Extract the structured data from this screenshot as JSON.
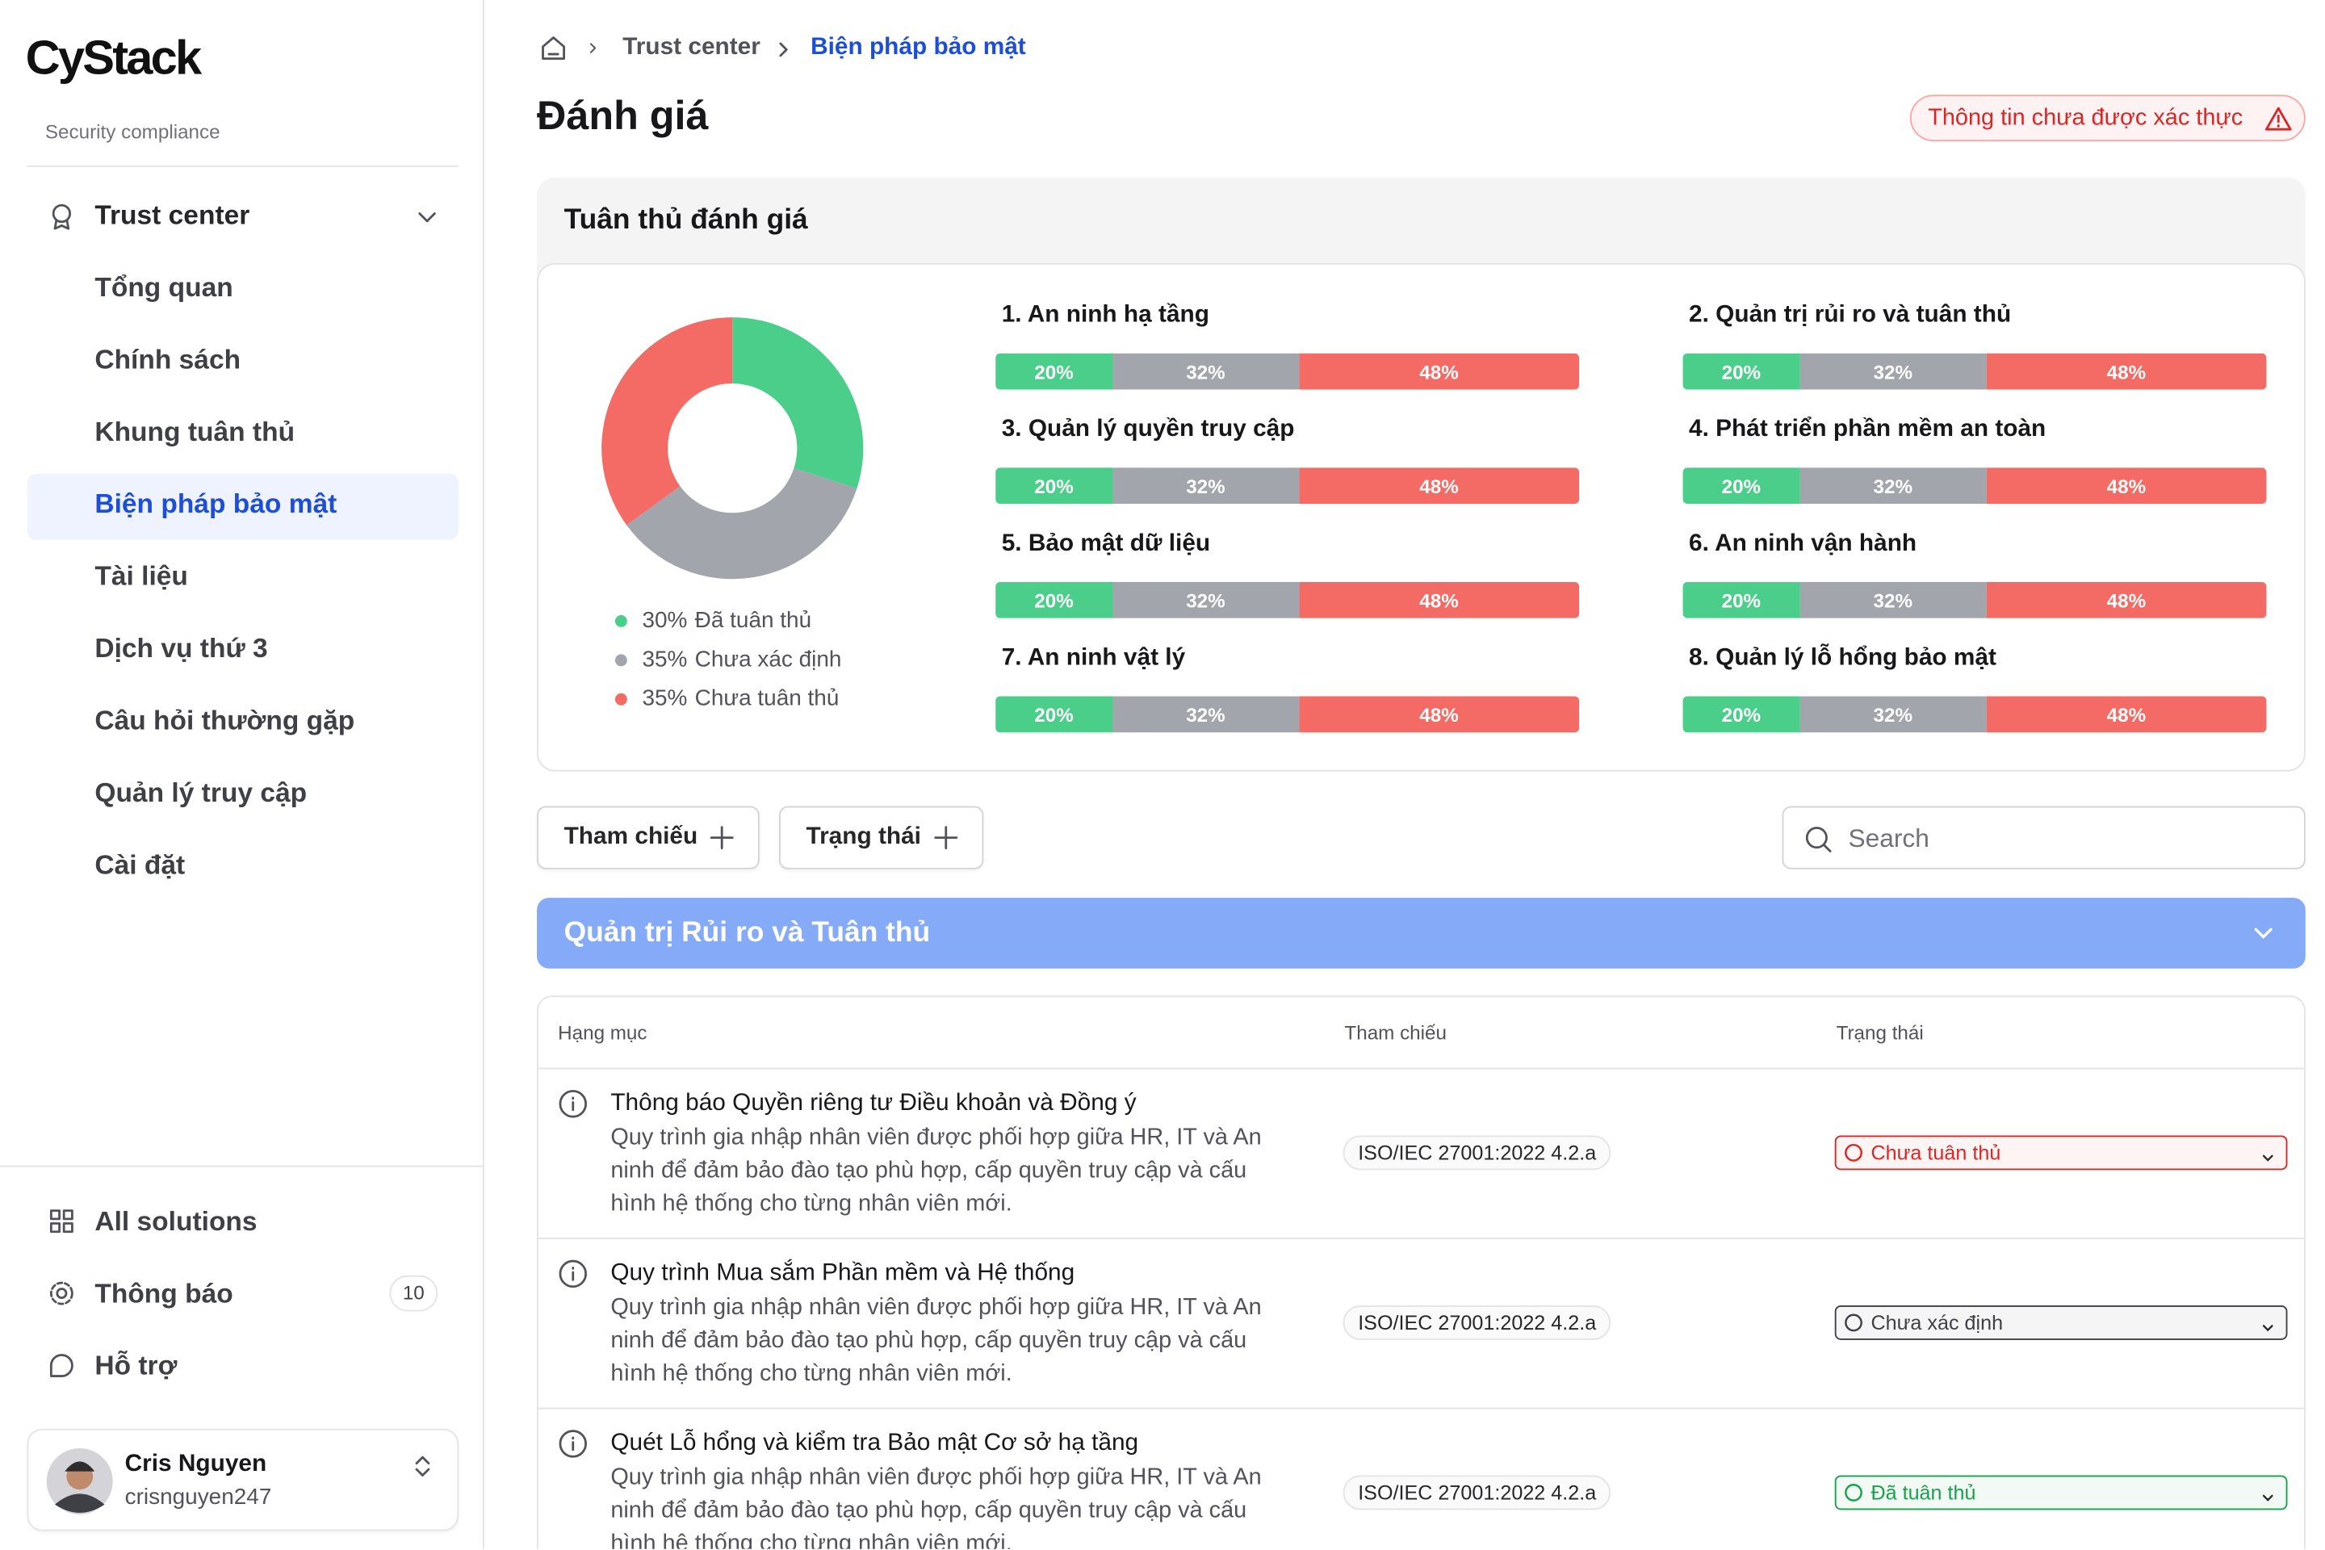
{
  "sidebar": {
    "logo": "CyStack",
    "subtitle": "Security compliance",
    "nav_group": "Trust center",
    "nav_items": [
      "Tổng quan",
      "Chính sách",
      "Khung tuân thủ",
      "Biện pháp bảo mật",
      "Tài liệu",
      "Dịch vụ thứ 3",
      "Câu hỏi thường gặp",
      "Quản lý truy cập",
      "Cài đặt"
    ],
    "active_index": 3,
    "bottom_items": [
      "All solutions",
      "Thông báo",
      "Hỗ trợ"
    ],
    "notification_count": 10,
    "user": {
      "name": "Cris Nguyen",
      "username": "crisnguyen247"
    }
  },
  "breadcrumb": [
    "Trust center",
    "Biện pháp bảo mật"
  ],
  "page_title": "Đánh giá",
  "warning": "Thông tin chưa được xác thực",
  "assessment": {
    "title": "Tuân thủ đánh giá",
    "donut": {
      "type": "pie",
      "segments": [
        {
          "name": "Đã tuân thủ",
          "value": 30,
          "value_label": "30%",
          "color": "#4ace8a"
        },
        {
          "name": "Chưa xác định",
          "value": 35,
          "value_label": "35%",
          "color": "#a3a5ac"
        },
        {
          "name": "Chưa tuân thủ",
          "value": 35,
          "value_label": "35%",
          "color": "#f36b64"
        }
      ]
    },
    "bar_colors": [
      "#4ace8a",
      "#a3a5ac",
      "#f36b64"
    ],
    "categories": [
      {
        "name": "1. An ninh hạ tầng",
        "values": [
          20,
          32,
          48
        ],
        "value_labels": [
          "20%",
          "32%",
          "48%"
        ]
      },
      {
        "name": "2. Quản trị rủi ro và tuân thủ",
        "values": [
          20,
          32,
          48
        ],
        "value_labels": [
          "20%",
          "32%",
          "48%"
        ]
      },
      {
        "name": "3. Quản lý quyền truy cập",
        "values": [
          20,
          32,
          48
        ],
        "value_labels": [
          "20%",
          "32%",
          "48%"
        ]
      },
      {
        "name": "4. Phát triển phần mềm an toàn",
        "values": [
          20,
          32,
          48
        ],
        "value_labels": [
          "20%",
          "32%",
          "48%"
        ]
      },
      {
        "name": "5. Bảo mật dữ liệu",
        "values": [
          20,
          32,
          48
        ],
        "value_labels": [
          "20%",
          "32%",
          "48%"
        ]
      },
      {
        "name": "6. An ninh vận hành",
        "values": [
          20,
          32,
          48
        ],
        "value_labels": [
          "20%",
          "32%",
          "48%"
        ]
      },
      {
        "name": "7. An ninh vật lý",
        "values": [
          20,
          32,
          48
        ],
        "value_labels": [
          "20%",
          "32%",
          "48%"
        ]
      },
      {
        "name": "8. Quản lý lỗ hổng bảo mật",
        "values": [
          20,
          32,
          48
        ],
        "value_labels": [
          "20%",
          "32%",
          "48%"
        ]
      }
    ]
  },
  "filters": [
    "Tham chiếu",
    "Trạng thái"
  ],
  "search_placeholder": "Search",
  "section": "Quản trị Rủi ro và Tuân thủ",
  "table": {
    "columns": [
      "Hạng mục",
      "Tham chiếu",
      "Trạng thái"
    ],
    "rows": [
      {
        "title": "Thông báo Quyền riêng tư Điều khoản và Đồng ý",
        "description": "Quy trình gia nhập nhân viên được phối hợp giữa HR, IT và An ninh để đảm bảo đào tạo phù hợp, cấp quyền truy cập và cấu hình hệ thống cho từng nhân viên mới.",
        "reference": "ISO/IEC 27001:2022 4.2.a",
        "status": "Chưa tuân thủ",
        "status_color": "#dc2626"
      },
      {
        "title": "Quy trình Mua sắm Phần mềm và Hệ thống",
        "description": "Quy trình gia nhập nhân viên được phối hợp giữa HR, IT và An ninh để đảm bảo đào tạo phù hợp, cấp quyền truy cập và cấu hình hệ thống cho từng nhân viên mới.",
        "reference": "ISO/IEC 27001:2022 4.2.a",
        "status": "Chưa xác định",
        "status_color": "#3f3f46"
      },
      {
        "title": "Quét Lỗ hổng và kiểm tra Bảo mật Cơ sở hạ tầng",
        "description": "Quy trình gia nhập nhân viên được phối hợp giữa HR, IT và An ninh để đảm bảo đào tạo phù hợp, cấp quyền truy cập và cấu hình hệ thống cho từng nhân viên mới.",
        "reference": "ISO/IEC 27001:2022 4.2.a",
        "status": "Đã tuân thủ",
        "status_color": "#16a34a"
      }
    ]
  }
}
